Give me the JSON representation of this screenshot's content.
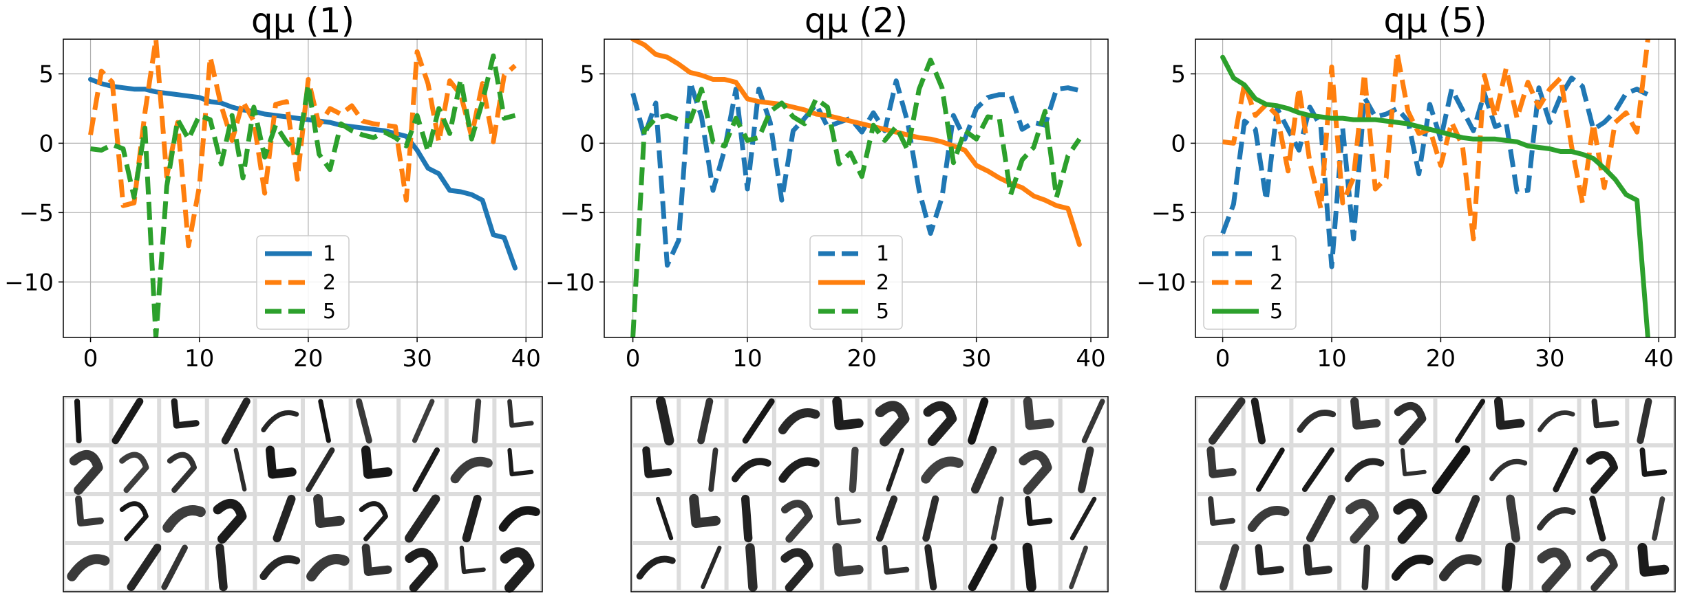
{
  "chart_data": [
    {
      "type": "line",
      "title": "qμ (1)",
      "xlim": [
        -2.5,
        41.5
      ],
      "ylim": [
        -14,
        7.5
      ],
      "xticks": [
        0,
        10,
        20,
        30,
        40
      ],
      "xtick_labels": [
        "0",
        "10",
        "20",
        "30",
        "40"
      ],
      "yticks": [
        5,
        0,
        -5,
        -10
      ],
      "ytick_labels": [
        "5",
        "0",
        "−5",
        "−10"
      ],
      "grid": true,
      "legend": "lower-center",
      "x": [
        0,
        1,
        2,
        3,
        4,
        5,
        6,
        7,
        8,
        9,
        10,
        11,
        12,
        13,
        14,
        15,
        16,
        17,
        18,
        19,
        20,
        21,
        22,
        23,
        24,
        25,
        26,
        27,
        28,
        29,
        30,
        31,
        32,
        33,
        34,
        35,
        36,
        37,
        38,
        39
      ],
      "series": [
        {
          "name": "1",
          "color": "#1f77b4",
          "dashed": false,
          "values": [
            4.6,
            4.3,
            4.1,
            4.0,
            3.9,
            3.9,
            3.7,
            3.6,
            3.5,
            3.4,
            3.3,
            3.0,
            2.9,
            2.6,
            2.4,
            2.3,
            2.1,
            2.0,
            1.9,
            1.8,
            1.7,
            1.6,
            1.5,
            1.3,
            1.2,
            1.1,
            1.0,
            0.9,
            0.7,
            0.5,
            -0.5,
            -1.8,
            -2.2,
            -3.4,
            -3.5,
            -3.7,
            -4.1,
            -6.6,
            -6.8,
            -9.0
          ]
        },
        {
          "name": "2",
          "color": "#ff7f0e",
          "dashed": true,
          "values": [
            0.6,
            5.2,
            4.4,
            -4.5,
            -4.3,
            2.2,
            7.5,
            -2.4,
            1.5,
            -7.4,
            -3.1,
            6.2,
            2.7,
            0.2,
            3.0,
            1.6,
            -3.6,
            2.8,
            3.0,
            -2.6,
            4.6,
            1.3,
            2.5,
            2.1,
            2.7,
            1.6,
            1.4,
            1.3,
            1.2,
            -4.1,
            6.6,
            4.3,
            0.1,
            4.5,
            3.5,
            0.5,
            4.3,
            0.1,
            4.9,
            5.6
          ]
        },
        {
          "name": "5",
          "color": "#2ca02c",
          "dashed": true,
          "values": [
            -0.4,
            -0.5,
            -0.1,
            -0.4,
            -3.9,
            1.1,
            -14.0,
            -3.1,
            1.7,
            0.3,
            2.0,
            1.7,
            -1.5,
            2.0,
            -2.5,
            2.6,
            -1.0,
            1.3,
            0.1,
            -0.7,
            4.2,
            -0.8,
            -1.9,
            1.4,
            0.9,
            0.6,
            0.4,
            0.8,
            0.4,
            -0.2,
            2.0,
            -0.6,
            2.5,
            0.7,
            4.6,
            0.3,
            3.0,
            6.3,
            1.8,
            2.0
          ]
        }
      ]
    },
    {
      "type": "line",
      "title": "qμ (2)",
      "xlim": [
        -2.5,
        41.5
      ],
      "ylim": [
        -14,
        7.5
      ],
      "xticks": [
        0,
        10,
        20,
        30,
        40
      ],
      "xtick_labels": [
        "0",
        "10",
        "20",
        "30",
        "40"
      ],
      "yticks": [
        5,
        0,
        -5,
        -10
      ],
      "ytick_labels": [
        "5",
        "0",
        "−5",
        "−10"
      ],
      "grid": true,
      "legend": "lower-center",
      "x": [
        0,
        1,
        2,
        3,
        4,
        5,
        6,
        7,
        8,
        9,
        10,
        11,
        12,
        13,
        14,
        15,
        16,
        17,
        18,
        19,
        20,
        21,
        22,
        23,
        24,
        25,
        26,
        27,
        28,
        29,
        30,
        31,
        32,
        33,
        34,
        35,
        36,
        37,
        38,
        39
      ],
      "series": [
        {
          "name": "1",
          "color": "#1f77b4",
          "dashed": true,
          "values": [
            3.6,
            0.5,
            2.9,
            -8.8,
            -7.0,
            4.4,
            1.9,
            -3.4,
            -0.5,
            3.9,
            -3.3,
            3.9,
            1.5,
            -4.1,
            0.9,
            1.8,
            2.8,
            1.2,
            1.5,
            1.8,
            0.8,
            2.2,
            0.9,
            4.5,
            1.5,
            -3.4,
            -6.5,
            -3.9,
            2.0,
            0.3,
            2.5,
            3.3,
            3.5,
            3.5,
            1.0,
            1.5,
            1.3,
            3.9,
            4.0,
            3.8
          ]
        },
        {
          "name": "2",
          "color": "#ff7f0e",
          "dashed": false,
          "values": [
            7.5,
            7.1,
            6.4,
            6.2,
            5.7,
            5.1,
            4.9,
            4.6,
            4.6,
            4.4,
            3.2,
            3.0,
            2.9,
            2.8,
            2.6,
            2.4,
            2.1,
            2.0,
            1.8,
            1.6,
            1.4,
            1.2,
            1.0,
            0.8,
            0.6,
            0.4,
            0.3,
            0.1,
            -0.2,
            -0.5,
            -1.6,
            -2.0,
            -2.5,
            -2.9,
            -3.2,
            -3.8,
            -4.1,
            -4.5,
            -4.7,
            -7.3
          ]
        },
        {
          "name": "5",
          "color": "#2ca02c",
          "dashed": true,
          "values": [
            -14.0,
            0.9,
            1.8,
            2.0,
            1.7,
            1.6,
            3.9,
            0.1,
            -0.2,
            1.8,
            0.2,
            0.4,
            2.3,
            2.9,
            1.9,
            1.4,
            3.2,
            2.6,
            -1.5,
            -0.7,
            -2.4,
            1.3,
            0.2,
            1.2,
            -0.5,
            3.9,
            6.0,
            4.0,
            -1.4,
            0.9,
            0.3,
            1.9,
            1.8,
            -3.7,
            -1.2,
            -0.3,
            2.3,
            -3.9,
            -0.9,
            0.3
          ]
        }
      ]
    },
    {
      "type": "line",
      "title": "qμ (5)",
      "xlim": [
        -2.5,
        41.5
      ],
      "ylim": [
        -14,
        7.5
      ],
      "xticks": [
        0,
        10,
        20,
        30,
        40
      ],
      "xtick_labels": [
        "0",
        "10",
        "20",
        "30",
        "40"
      ],
      "yticks": [
        5,
        0,
        -5,
        -10
      ],
      "ytick_labels": [
        "5",
        "0",
        "−5",
        "−10"
      ],
      "grid": true,
      "legend": "lower-left",
      "x": [
        0,
        1,
        2,
        3,
        4,
        5,
        6,
        7,
        8,
        9,
        10,
        11,
        12,
        13,
        14,
        15,
        16,
        17,
        18,
        19,
        20,
        21,
        22,
        23,
        24,
        25,
        26,
        27,
        28,
        29,
        30,
        31,
        32,
        33,
        34,
        35,
        36,
        37,
        38,
        39
      ],
      "series": [
        {
          "name": "1",
          "color": "#1f77b4",
          "dashed": true,
          "values": [
            -6.5,
            -4.4,
            1.6,
            1.0,
            -4.1,
            2.5,
            1.0,
            -0.5,
            2.6,
            1.2,
            -8.9,
            1.1,
            -6.9,
            3.3,
            1.9,
            2.1,
            2.5,
            1.6,
            -2.2,
            2.8,
            0.3,
            3.9,
            2.4,
            0.9,
            3.6,
            1.2,
            1.5,
            -3.5,
            -3.4,
            4.0,
            1.5,
            3.4,
            4.7,
            4.1,
            1.0,
            1.5,
            2.3,
            3.6,
            3.9,
            3.5
          ]
        },
        {
          "name": "2",
          "color": "#ff7f0e",
          "dashed": true,
          "values": [
            0.1,
            0.0,
            4.3,
            2.0,
            2.8,
            2.0,
            -2.0,
            4.0,
            -1.4,
            -4.7,
            5.5,
            -4.3,
            -2.5,
            5.0,
            -3.3,
            -2.5,
            6.5,
            2.3,
            0.7,
            1.0,
            -1.6,
            1.5,
            -0.2,
            -6.9,
            4.9,
            1.9,
            5.4,
            1.8,
            4.4,
            2.6,
            3.9,
            4.7,
            -0.2,
            -4.3,
            1.4,
            -3.2,
            1.5,
            2.2,
            0.8,
            7.5
          ]
        },
        {
          "name": "5",
          "color": "#2ca02c",
          "dashed": false,
          "values": [
            6.2,
            4.7,
            4.2,
            3.2,
            2.8,
            2.7,
            2.5,
            2.2,
            2.0,
            1.9,
            1.8,
            1.8,
            1.7,
            1.7,
            1.7,
            1.6,
            1.5,
            1.4,
            1.2,
            1.0,
            0.8,
            0.6,
            0.4,
            0.3,
            0.3,
            0.3,
            0.2,
            0.1,
            -0.2,
            -0.3,
            -0.4,
            -0.6,
            -0.6,
            -0.8,
            -1.1,
            -1.8,
            -2.6,
            -3.7,
            -4.1,
            -14.0
          ]
        }
      ]
    }
  ],
  "image_grids": [
    {
      "rows": 4,
      "cols": 10
    },
    {
      "rows": 4,
      "cols": 10
    },
    {
      "rows": 4,
      "cols": 10
    }
  ]
}
